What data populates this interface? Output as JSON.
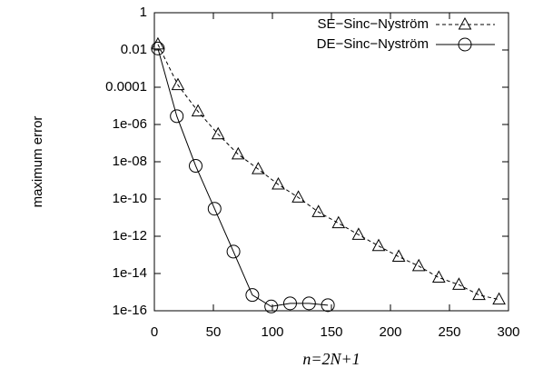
{
  "chart_data": {
    "type": "line",
    "ylabel": "maximum error",
    "xlabel": "n=2N+1",
    "log_y": true,
    "legend": "top-right",
    "xlim": [
      0,
      300
    ],
    "xticks": [
      0,
      50,
      100,
      150,
      200,
      250,
      300
    ],
    "ylim": [
      1e-16,
      1
    ],
    "yticks": [
      1,
      0.01,
      0.0001,
      {
        "value": 1e-06,
        "label": "1e-06"
      },
      {
        "value": 1e-08,
        "label": "1e-08"
      },
      {
        "value": 1e-10,
        "label": "1e-10"
      },
      {
        "value": 1e-12,
        "label": "1e-12"
      },
      {
        "value": 1e-14,
        "label": "1e-14"
      },
      {
        "value": 1e-16,
        "label": "1e-16"
      }
    ],
    "series": [
      {
        "name": "SE−Sinc−Nyström",
        "color": "#000000",
        "dash": true,
        "marker": "triangle",
        "x": [
          3,
          20,
          37,
          54,
          71,
          88,
          105,
          122,
          139,
          156,
          173,
          190,
          207,
          224,
          241,
          258,
          275,
          292
        ],
        "values": [
          0.02,
          0.00013,
          5e-06,
          3e-07,
          2.5e-08,
          4e-09,
          6e-10,
          1.2e-10,
          2e-11,
          5e-12,
          1.2e-12,
          3e-13,
          8e-14,
          2.5e-14,
          6e-15,
          2.5e-15,
          7e-16,
          4e-16
        ]
      },
      {
        "name": "DE−Sinc−Nyström",
        "color": "#000000",
        "dash": false,
        "marker": "circle",
        "x": [
          3,
          19,
          35,
          51,
          67,
          83,
          99,
          115,
          131,
          147
        ],
        "values": [
          0.012,
          2.8e-06,
          6e-09,
          3e-11,
          1.5e-13,
          7e-16,
          1.7e-16,
          2.5e-16,
          2.5e-16,
          2e-16
        ]
      }
    ]
  }
}
